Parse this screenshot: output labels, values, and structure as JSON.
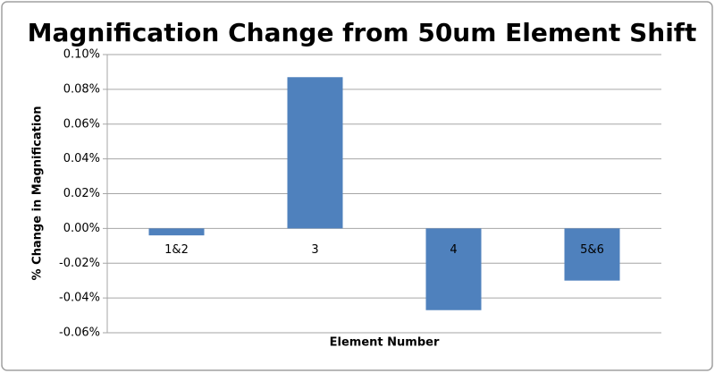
{
  "chart_data": {
    "type": "bar",
    "title": "Magnification Change from 50um Element Shift",
    "x_label": "Element Number",
    "y_label": "% Change in Magnification",
    "categories": [
      "1&2",
      "3",
      "4",
      "5&6"
    ],
    "values": [
      -0.004,
      0.087,
      -0.047,
      -0.03
    ],
    "color": "#4f81bd",
    "ylim": [
      -0.06,
      0.1
    ],
    "yticks": [
      {
        "value": -0.06,
        "label": "-0.06%"
      },
      {
        "value": -0.04,
        "label": "-0.04%"
      },
      {
        "value": -0.02,
        "label": "-0.02%"
      },
      {
        "value": 0,
        "label": "0.00%"
      },
      {
        "value": 0.02,
        "label": "0.02%"
      },
      {
        "value": 0.04,
        "label": "0.04%"
      },
      {
        "value": 0.06,
        "label": "0.06%"
      },
      {
        "value": 0.08,
        "label": "0.08%"
      },
      {
        "value": 0.1,
        "label": "0.10%"
      }
    ],
    "grid": true
  }
}
